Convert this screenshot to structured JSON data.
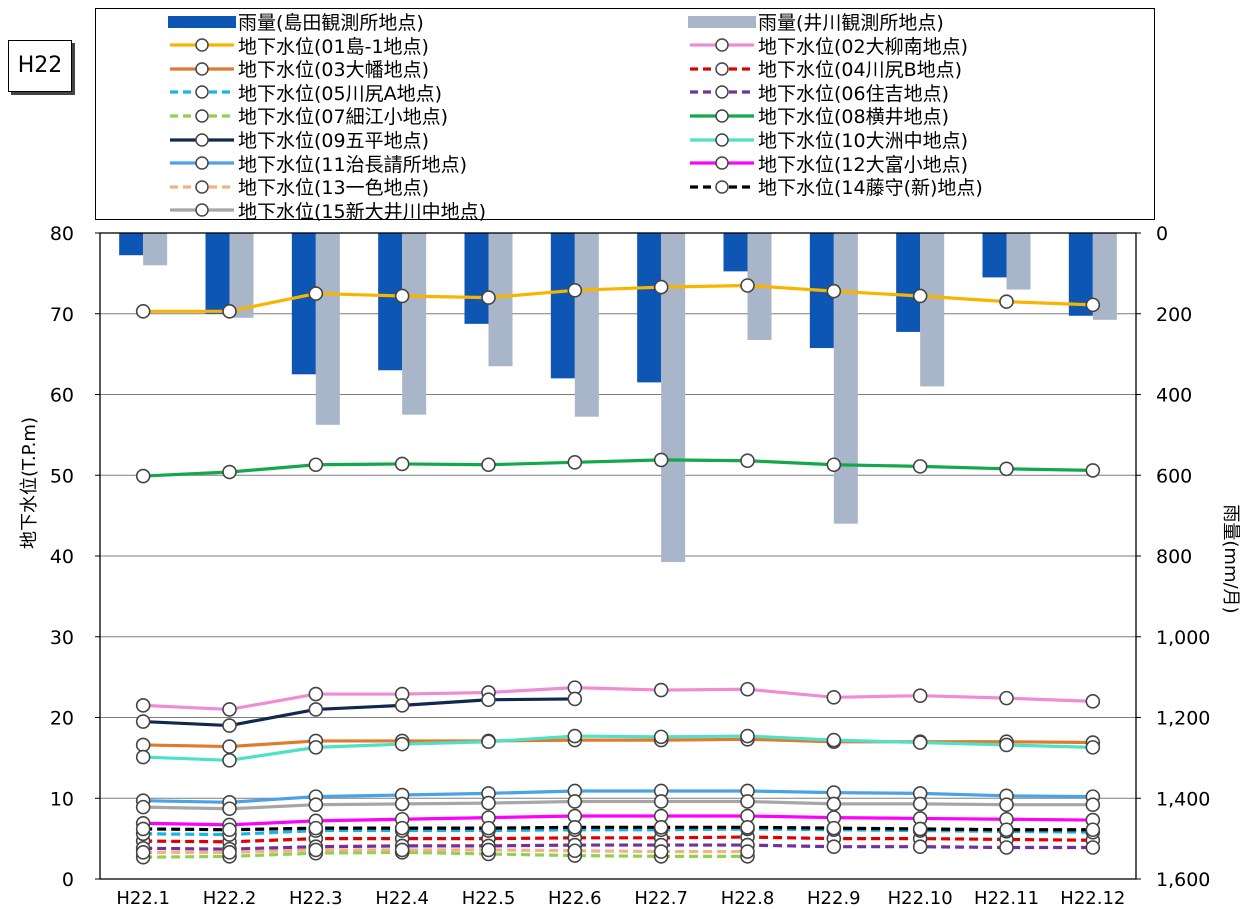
{
  "year_label": "H22",
  "chart_data": {
    "type": "bar+line",
    "categories": [
      "H22.1",
      "H22.2",
      "H22.3",
      "H22.4",
      "H22.5",
      "H22.6",
      "H22.7",
      "H22.8",
      "H22.9",
      "H22.10",
      "H22.11",
      "H22.12"
    ],
    "y_left": {
      "label": "地下水位(T.P.m)",
      "range": [
        0,
        80
      ],
      "ticks": [
        "0",
        "10",
        "20",
        "30",
        "40",
        "50",
        "60",
        "70",
        "80"
      ],
      "tick_values": [
        0,
        10,
        20,
        30,
        40,
        50,
        60,
        70,
        80
      ]
    },
    "y_right": {
      "label": "雨量(mm/月)",
      "range": [
        0,
        1600
      ],
      "inverted": true,
      "ticks": [
        "0",
        "200",
        "400",
        "600",
        "800",
        "1,000",
        "1,200",
        "1,400",
        "1,600"
      ],
      "tick_values": [
        0,
        200,
        400,
        600,
        800,
        1000,
        1200,
        1400,
        1600
      ]
    },
    "grid": true,
    "legend_position": "top",
    "bar_series": [
      {
        "name": "雨量(島田観測所地点)",
        "color": "#0d56b4",
        "values": [
          55,
          200,
          350,
          340,
          225,
          360,
          370,
          95,
          285,
          245,
          110,
          205
        ]
      },
      {
        "name": "雨量(井川観測所地点)",
        "color": "#a9b5c9",
        "values": [
          80,
          210,
          475,
          450,
          330,
          455,
          815,
          265,
          720,
          380,
          140,
          215
        ]
      }
    ],
    "line_series": [
      {
        "name": "地下水位(01島-1地点)",
        "color": "#f7b500",
        "dash": false,
        "values": [
          70.3,
          70.3,
          72.5,
          72.2,
          72.0,
          72.9,
          73.3,
          73.5,
          72.8,
          72.2,
          71.5,
          71.1
        ]
      },
      {
        "name": "地下水位(02大柳南地点)",
        "color": "#f08cd6",
        "dash": false,
        "values": [
          21.5,
          21.0,
          22.9,
          22.9,
          23.1,
          23.7,
          23.4,
          23.5,
          22.5,
          22.7,
          22.4,
          22.0
        ]
      },
      {
        "name": "地下水位(03大幡地点)",
        "color": "#e07a2f",
        "dash": false,
        "values": [
          16.6,
          16.4,
          17.1,
          17.1,
          17.1,
          17.2,
          17.2,
          17.3,
          17.0,
          17.0,
          17.0,
          16.9
        ]
      },
      {
        "name": "地下水位(04川尻B地点)",
        "color": "#e00000",
        "dash": true,
        "values": [
          4.7,
          4.6,
          5.0,
          5.0,
          5.0,
          5.1,
          5.1,
          5.2,
          5.0,
          5.0,
          4.9,
          4.8
        ]
      },
      {
        "name": "地下水位(05川尻A地点)",
        "color": "#19b3e6",
        "dash": true,
        "values": [
          5.6,
          5.5,
          6.0,
          6.0,
          6.0,
          6.1,
          6.1,
          6.2,
          6.1,
          6.0,
          5.9,
          5.8
        ]
      },
      {
        "name": "地下水位(06住吉地点)",
        "color": "#7030a0",
        "dash": true,
        "values": [
          3.8,
          3.7,
          4.0,
          4.1,
          4.1,
          4.2,
          4.2,
          4.2,
          4.0,
          4.0,
          3.9,
          3.9
        ]
      },
      {
        "name": "地下水位(07細江小地点)",
        "color": "#92d050",
        "dash": true,
        "values": [
          2.7,
          2.8,
          3.2,
          3.3,
          3.1,
          2.9,
          2.8,
          2.8,
          null,
          null,
          null,
          null
        ]
      },
      {
        "name": "地下水位(08横井地点)",
        "color": "#13a84a",
        "dash": false,
        "values": [
          49.9,
          50.4,
          51.3,
          51.4,
          51.3,
          51.6,
          51.9,
          51.8,
          51.3,
          51.1,
          50.8,
          50.6
        ]
      },
      {
        "name": "地下水位(09五平地点)",
        "color": "#12294f",
        "dash": false,
        "values": [
          19.5,
          19.0,
          21.0,
          21.5,
          22.2,
          22.3,
          null,
          null,
          null,
          null,
          null,
          null
        ]
      },
      {
        "name": "地下水位(10大洲中地点)",
        "color": "#4fe0c8",
        "dash": false,
        "values": [
          15.1,
          14.7,
          16.3,
          16.7,
          17.0,
          17.7,
          17.6,
          17.7,
          17.2,
          16.9,
          16.6,
          16.3
        ]
      },
      {
        "name": "地下水位(11治長請所地点)",
        "color": "#4aa3e6",
        "dash": false,
        "values": [
          9.7,
          9.5,
          10.2,
          10.4,
          10.6,
          10.9,
          10.9,
          10.9,
          10.7,
          10.6,
          10.3,
          10.2
        ]
      },
      {
        "name": "地下水位(12大富小地点)",
        "color": "#ff00ff",
        "dash": false,
        "values": [
          6.9,
          6.7,
          7.2,
          7.4,
          7.6,
          7.8,
          7.8,
          7.8,
          7.6,
          7.5,
          7.4,
          7.3
        ]
      },
      {
        "name": "地下水位(13一色地点)",
        "color": "#f4b183",
        "dash": true,
        "values": [
          3.3,
          3.3,
          3.6,
          3.6,
          3.6,
          3.5,
          3.4,
          3.4,
          null,
          null,
          null,
          null
        ]
      },
      {
        "name": "地下水位(14藤守(新)地点)",
        "color": "#000000",
        "dash": true,
        "values": [
          6.2,
          6.1,
          6.3,
          6.3,
          6.3,
          6.4,
          6.4,
          6.4,
          6.3,
          6.2,
          6.1,
          6.1
        ]
      },
      {
        "name": "地下水位(15新大井川中地点)",
        "color": "#a6a6a6",
        "dash": false,
        "values": [
          8.9,
          8.7,
          9.2,
          9.3,
          9.4,
          9.6,
          9.6,
          9.6,
          9.3,
          9.3,
          9.2,
          9.2
        ]
      }
    ]
  }
}
